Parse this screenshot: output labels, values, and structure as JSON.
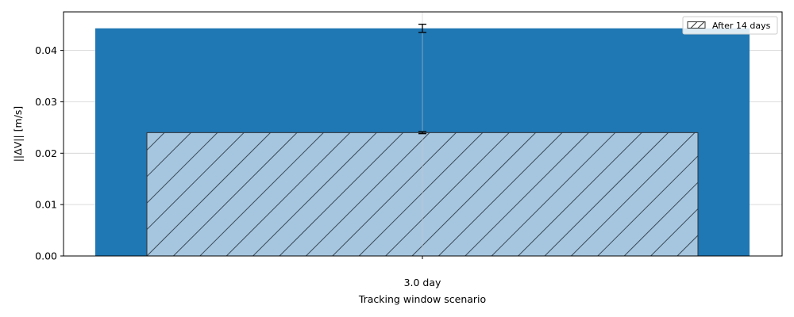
{
  "chart_data": {
    "type": "bar",
    "categories": [
      "3.0 day"
    ],
    "series": [
      {
        "name": "",
        "values": [
          0.0443
        ],
        "error": [
          0.0008
        ],
        "color": "#1f77b4",
        "hatch": false
      },
      {
        "name": "After 14 days",
        "values": [
          0.024
        ],
        "error": [
          0.0002
        ],
        "color": "#a6c6e0",
        "edge_color": "#333333",
        "hatch": true
      }
    ],
    "title": "",
    "xlabel": "Tracking window scenario",
    "ylabel": "||ΔV|| [m/s]",
    "ylim": [
      0,
      0.0475
    ],
    "yticks": [
      0.0,
      0.01,
      0.02,
      0.03,
      0.04
    ],
    "ytick_labels": [
      "0.00",
      "0.01",
      "0.02",
      "0.03",
      "0.04"
    ],
    "grid": true,
    "legend_position": "top-right"
  }
}
